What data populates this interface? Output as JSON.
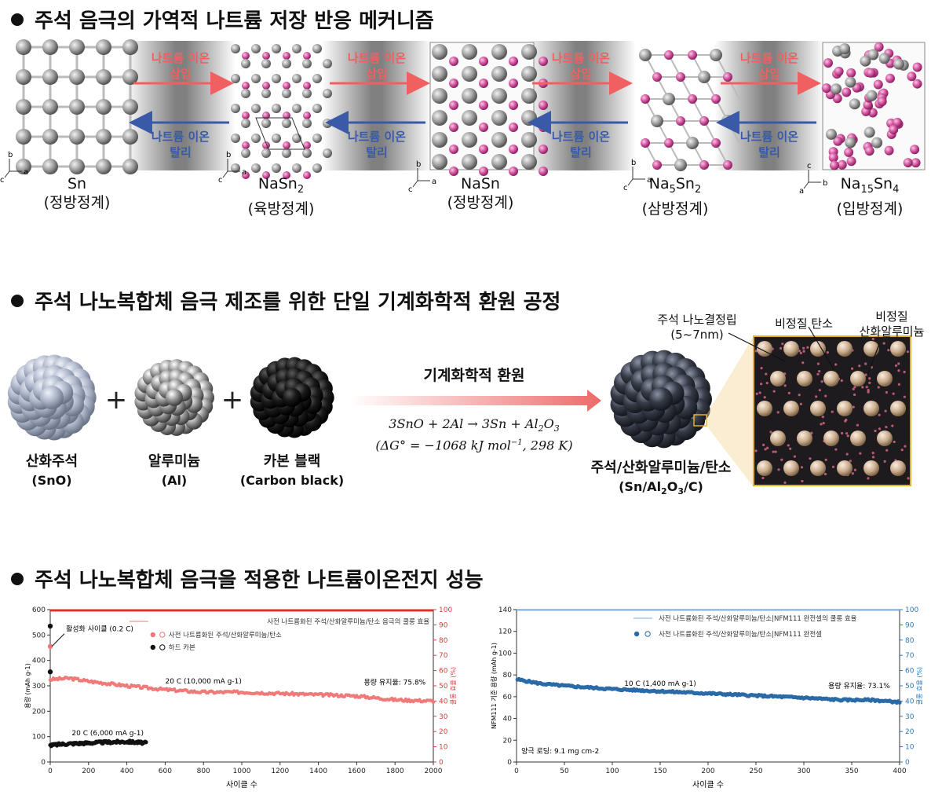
{
  "section1": {
    "title": "주석 음극의 가역적 나트륨 저장 반응 메커니즘",
    "insert_label": "나트륨 이온 삽입",
    "extract_label": "나트륨 이온 탈리",
    "phases": [
      {
        "formula": "Sn",
        "system": "(정방정계)"
      },
      {
        "formula": "NaSn2",
        "system": "(육방정계)"
      },
      {
        "formula": "NaSn",
        "system": "(정방정계)"
      },
      {
        "formula": "Na5Sn2",
        "system": "(삼방정계)"
      },
      {
        "formula": "Na15Sn4",
        "system": "(입방정계)"
      }
    ]
  },
  "section2": {
    "title": "주석 나노복합체 음극 제조를 위한 단일 기계화학적 환원 공정",
    "reactants": [
      {
        "name": "산화주석",
        "formula": "(SnO)"
      },
      {
        "name": "알루미늄",
        "formula": "(Al)"
      },
      {
        "name": "카본 블랙",
        "formula": "(Carbon black)"
      }
    ],
    "process": "기계화학적 환원",
    "equation": "3SnO + 2Al → 3Sn + Al2O3",
    "energy": "(ΔG° = −1068 kJ mol−1, 298 K)",
    "product_name": "주석/산화알루미늄/탄소",
    "product_formula": "(Sn/Al2O3/C)",
    "callouts": {
      "nanocrystal": "주석 나노결정립",
      "size": "(5~7nm)",
      "carbon": "비정질 탄소",
      "alumina_1": "비정질",
      "alumina_2": "산화알루미늄"
    }
  },
  "section3": {
    "title": "주석 나노복합체 음극을 적용한 나트륨이온전지 성능"
  },
  "chart_data": [
    {
      "type": "scatter",
      "xlabel": "사이클 수",
      "ylabel": "용량 (mAh g-1)",
      "y2label": "쿨롱 효율 (%)",
      "xlim": [
        0,
        2000
      ],
      "ylim": [
        0,
        600
      ],
      "y2lim": [
        0,
        100
      ],
      "xticks": [
        0,
        200,
        400,
        600,
        800,
        1000,
        1200,
        1400,
        1600,
        1800,
        2000
      ],
      "yticks": [
        0,
        100,
        200,
        300,
        400,
        500,
        600
      ],
      "y2ticks": [
        0,
        10,
        20,
        30,
        40,
        50,
        60,
        70,
        80,
        90,
        100
      ],
      "legend": [
        "사전 나트륨화된 주석/산화알루미늄/탄소 음극의 쿨롱 효율",
        "사전 나트륨화된 주석/산화알루미늄/탄소",
        "하드 카본"
      ],
      "annotations": {
        "activation": "활성화 사이클 (0.2 C)",
        "rate_main": "20 C (10,000 mA g-1)",
        "retention": "용량 유지율: 75.8%",
        "rate_hc": "20 C (6,000 mA g-1)"
      },
      "series": [
        {
          "name": "사전 나트륨화된 주석/산화알루미늄/탄소",
          "x": [
            0,
            100,
            200,
            400,
            600,
            800,
            1000,
            1200,
            1400,
            1600,
            1800,
            2000
          ],
          "y": [
            325,
            330,
            318,
            300,
            285,
            275,
            275,
            270,
            265,
            260,
            245,
            240
          ]
        },
        {
          "name": "하드 카본",
          "x": [
            0,
            50,
            100,
            200,
            300,
            400,
            500
          ],
          "y": [
            65,
            70,
            72,
            75,
            78,
            80,
            75
          ]
        },
        {
          "name": "쿨롱 효율",
          "x": [
            0,
            2000
          ],
          "y": [
            99.5,
            99.5
          ]
        }
      ],
      "activation_points": [
        {
          "x": 0,
          "y": 535
        },
        {
          "x": 0,
          "y": 455
        },
        {
          "x": 0,
          "y": 355
        }
      ]
    },
    {
      "type": "scatter",
      "xlabel": "사이클 수",
      "ylabel": "NFM111 기준 용량 (mAh g-1)",
      "y2label": "쿨롱 효율 (%)",
      "xlim": [
        0,
        400
      ],
      "ylim": [
        0,
        140
      ],
      "y2lim": [
        0,
        100
      ],
      "xticks": [
        0,
        50,
        100,
        150,
        200,
        250,
        300,
        350,
        400
      ],
      "yticks": [
        0,
        20,
        40,
        60,
        80,
        100,
        120,
        140
      ],
      "y2ticks": [
        0,
        10,
        20,
        30,
        40,
        50,
        60,
        70,
        80,
        90,
        100
      ],
      "legend": [
        "사전 나트륨화된 주석/산화알루미늄/탄소|NFM111 완전셀의 쿨롱 효율",
        "사전 나트륨화된 주석/산화알루미늄/탄소|NFM111 완전셀"
      ],
      "annotations": {
        "rate": "10 C (1,400 mA g-1)",
        "retention": "용량 유지율: 73.1%",
        "loading": "양극 로딩: 9.1 mg cm-2"
      },
      "series": [
        {
          "name": "사전 나트륨화된 주석/산화알루미늄/탄소|NFM111 완전셀",
          "x": [
            0,
            25,
            50,
            100,
            150,
            200,
            250,
            300,
            340,
            370,
            400
          ],
          "y": [
            76,
            72,
            70,
            67,
            65,
            63,
            61,
            59,
            57,
            57,
            55
          ]
        },
        {
          "name": "쿨롱 효율",
          "x": [
            0,
            400
          ],
          "y": [
            99.8,
            99.8
          ]
        }
      ]
    }
  ]
}
